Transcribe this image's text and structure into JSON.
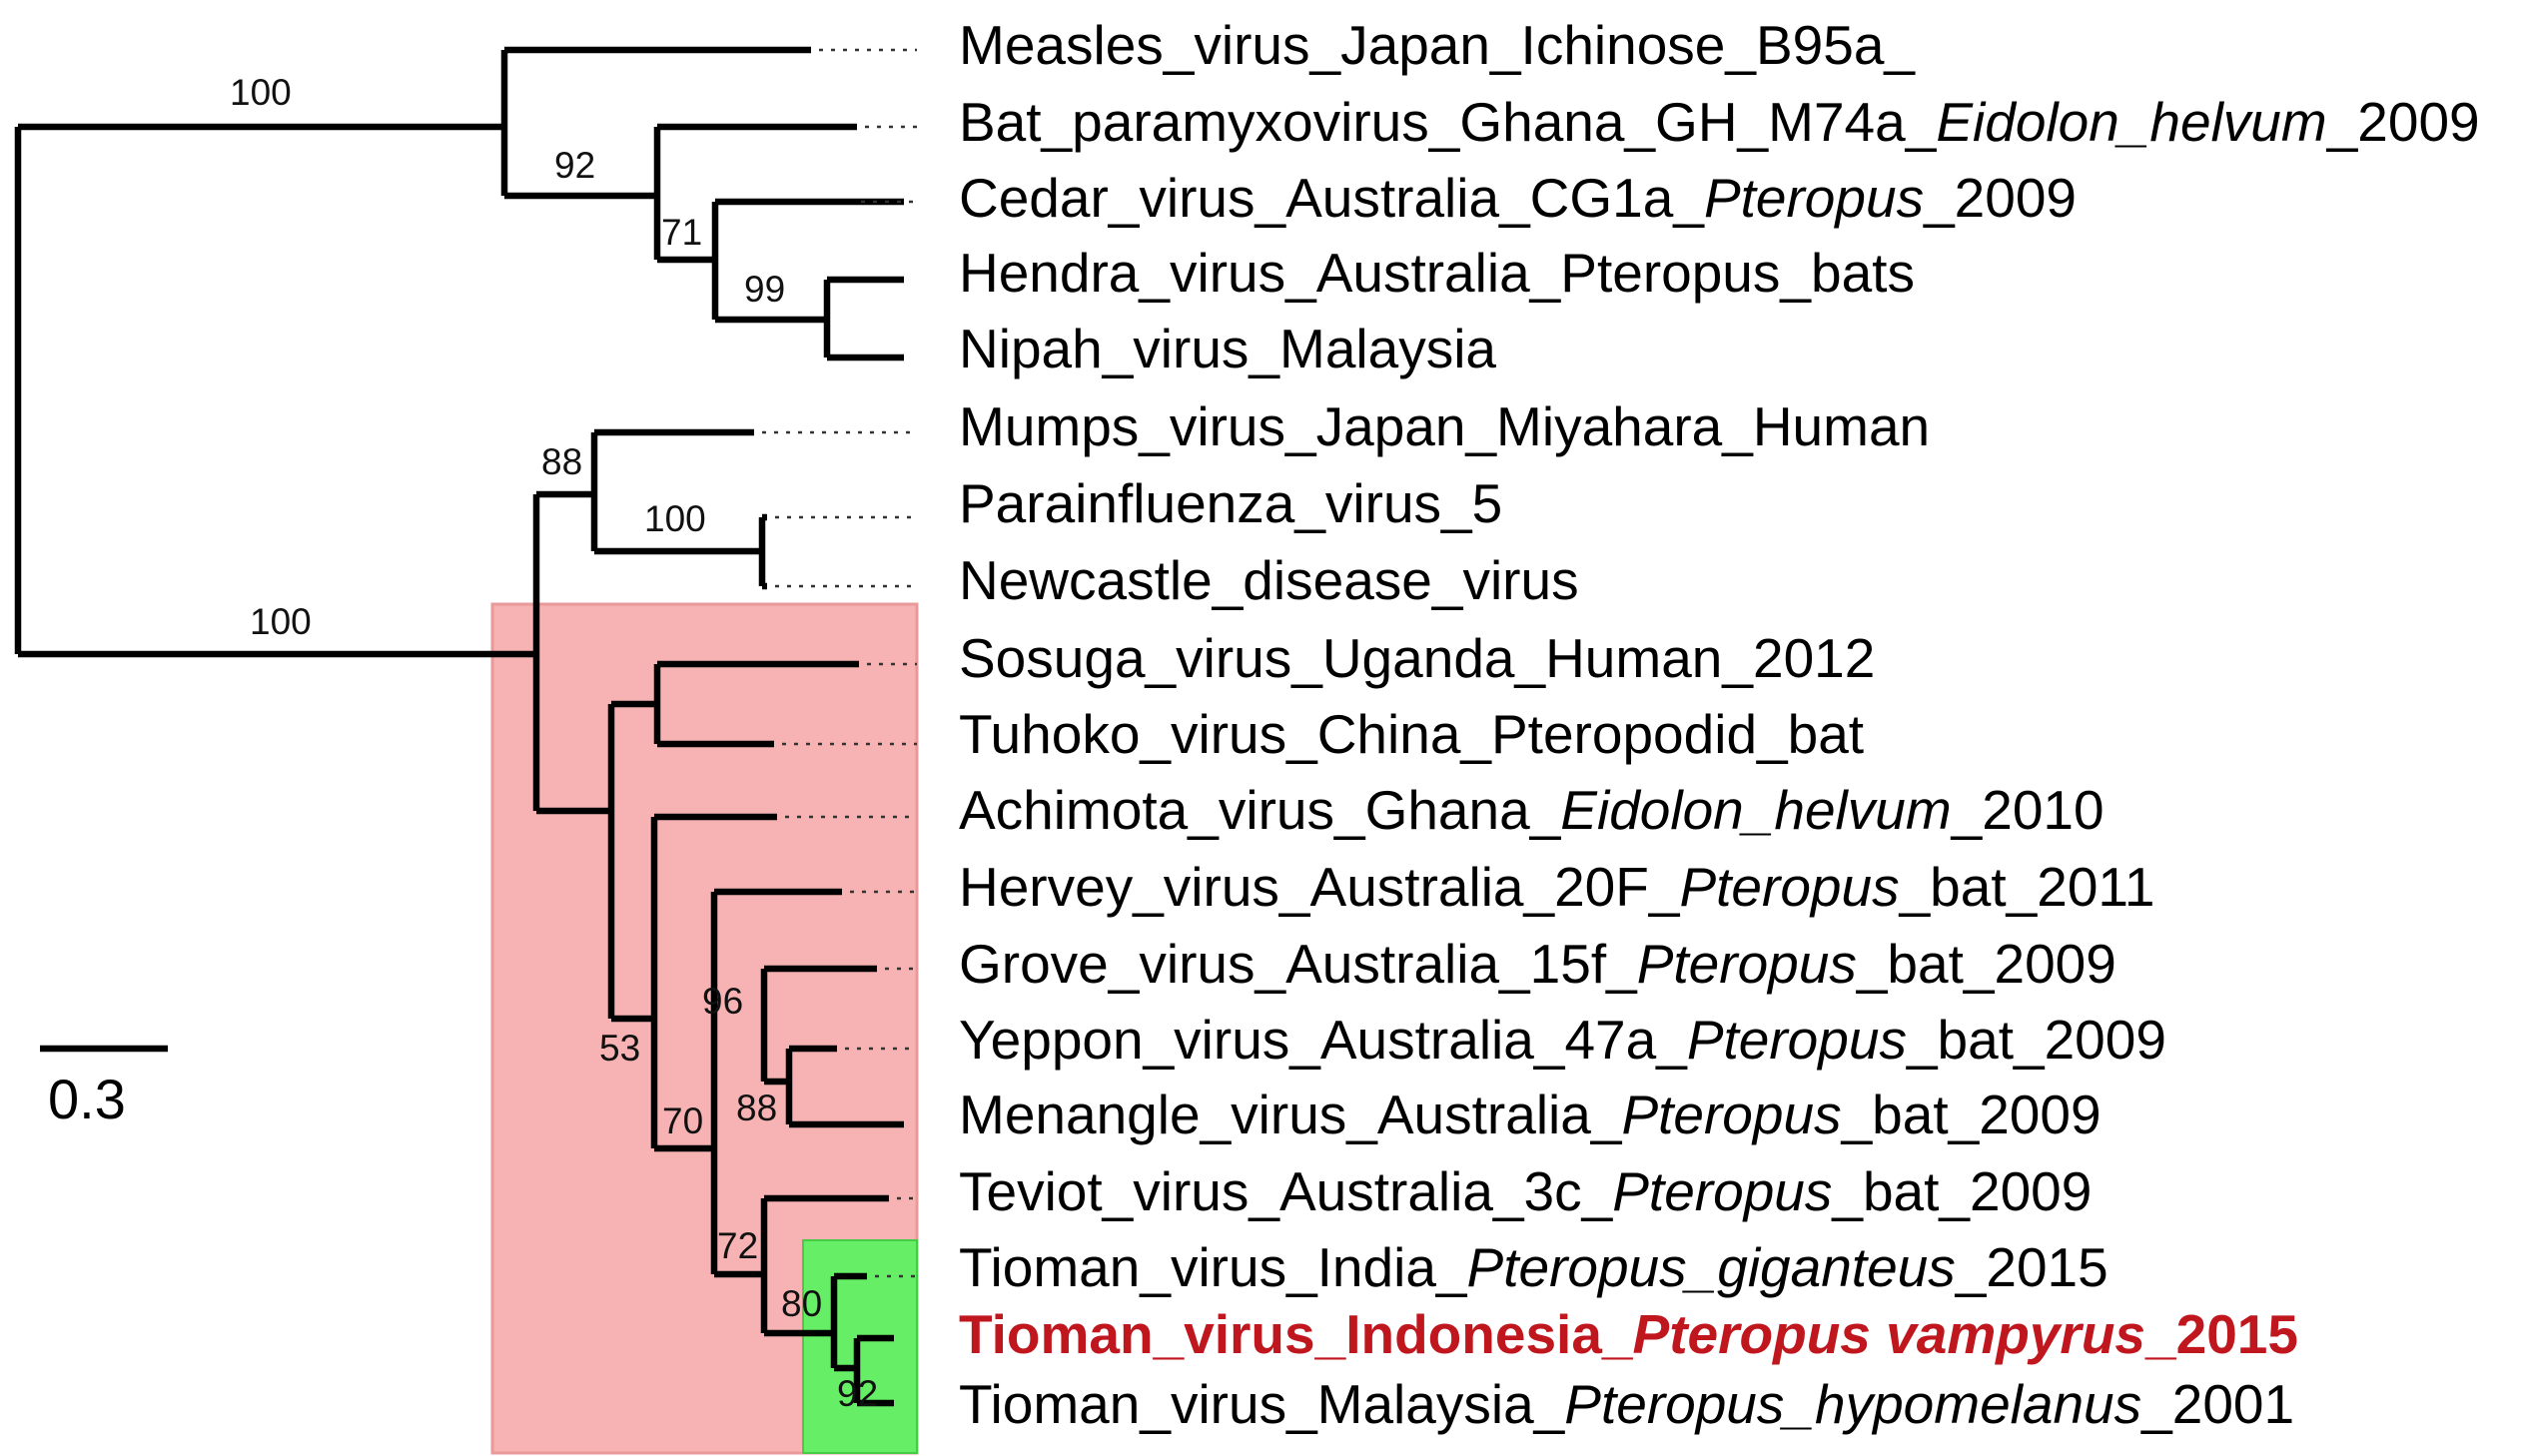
{
  "colors": {
    "clade_box": "#f7b3b3",
    "subclade_box": "#66ee66",
    "highlight_text": "#c0161d"
  },
  "taxa": [
    {
      "parts": [
        {
          "t": "Measles_virus_Japan_Ichinose_B95a_",
          "i": false
        }
      ],
      "highlight": false
    },
    {
      "parts": [
        {
          "t": "Bat_paramyxovirus_Ghana_GH_M74a_",
          "i": false
        },
        {
          "t": "Eidolon_helvum",
          "i": true
        },
        {
          "t": "_2009",
          "i": false
        }
      ],
      "highlight": false
    },
    {
      "parts": [
        {
          "t": "Cedar_virus_Australia_CG1a_",
          "i": false
        },
        {
          "t": "Pteropus",
          "i": true
        },
        {
          "t": "_2009",
          "i": false
        }
      ],
      "highlight": false
    },
    {
      "parts": [
        {
          "t": "Hendra_virus_Australia_Pteropus_bats",
          "i": false
        }
      ],
      "highlight": false
    },
    {
      "parts": [
        {
          "t": "Nipah_virus_Malaysia",
          "i": false
        }
      ],
      "highlight": false
    },
    {
      "parts": [
        {
          "t": "Mumps_virus_Japan_Miyahara_Human",
          "i": false
        }
      ],
      "highlight": false
    },
    {
      "parts": [
        {
          "t": "Parainfluenza_virus_5",
          "i": false
        }
      ],
      "highlight": false
    },
    {
      "parts": [
        {
          "t": "Newcastle_disease_virus",
          "i": false
        }
      ],
      "highlight": false
    },
    {
      "parts": [
        {
          "t": "Sosuga_virus_Uganda_Human_2012",
          "i": false
        }
      ],
      "highlight": false
    },
    {
      "parts": [
        {
          "t": "Tuhoko_virus_China_Pteropodid_bat",
          "i": false
        }
      ],
      "highlight": false
    },
    {
      "parts": [
        {
          "t": "Achimota_virus_Ghana_",
          "i": false
        },
        {
          "t": "Eidolon_helvum",
          "i": true
        },
        {
          "t": "_2010",
          "i": false
        }
      ],
      "highlight": false
    },
    {
      "parts": [
        {
          "t": "Hervey_virus_Australia_20F_",
          "i": false
        },
        {
          "t": "Pteropus",
          "i": true
        },
        {
          "t": "_bat_2011",
          "i": false
        }
      ],
      "highlight": false
    },
    {
      "parts": [
        {
          "t": "Grove_virus_Australia_15f_",
          "i": false
        },
        {
          "t": "Pteropus",
          "i": true
        },
        {
          "t": "_bat_2009",
          "i": false
        }
      ],
      "highlight": false
    },
    {
      "parts": [
        {
          "t": "Yeppon_virus_Australia_47a_",
          "i": false
        },
        {
          "t": "Pteropus",
          "i": true
        },
        {
          "t": "_bat_2009",
          "i": false
        }
      ],
      "highlight": false
    },
    {
      "parts": [
        {
          "t": "Menangle_virus_Australia_",
          "i": false
        },
        {
          "t": "Pteropus",
          "i": true
        },
        {
          "t": "_bat_2009",
          "i": false
        }
      ],
      "highlight": false
    },
    {
      "parts": [
        {
          "t": "Teviot_virus_Australia_3c_",
          "i": false
        },
        {
          "t": "Pteropus",
          "i": true
        },
        {
          "t": "_bat_2009",
          "i": false
        }
      ],
      "highlight": false
    },
    {
      "parts": [
        {
          "t": "Tioman_virus_India_",
          "i": false
        },
        {
          "t": "Pteropus_giganteus",
          "i": true
        },
        {
          "t": "_2015",
          "i": false
        }
      ],
      "highlight": false
    },
    {
      "parts": [
        {
          "t": "Tioman_virus_Indonesia_",
          "i": false
        },
        {
          "t": "Pteropus vampyrus",
          "i": true
        },
        {
          "t": "_2015",
          "i": false
        }
      ],
      "highlight": true
    },
    {
      "parts": [
        {
          "t": "Tioman_virus_Malaysia_",
          "i": false
        },
        {
          "t": "Pteropus_hypomelanus",
          "i": true
        },
        {
          "t": "_2001",
          "i": false
        }
      ],
      "highlight": false
    }
  ],
  "support_values": [
    "100",
    "92",
    "71",
    "99",
    "100",
    "88",
    "100",
    "53",
    "96",
    "70",
    "88",
    "72",
    "80",
    "92"
  ],
  "scale_bar": {
    "label": "0.3"
  }
}
